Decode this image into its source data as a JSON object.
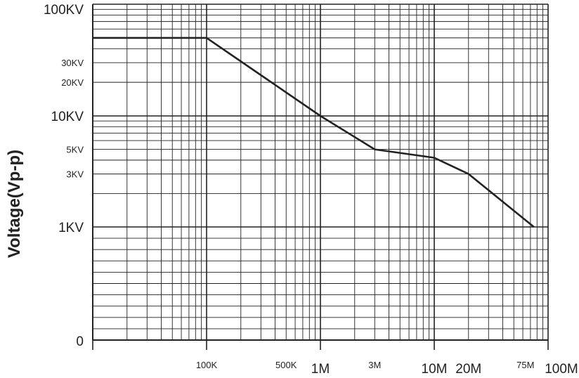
{
  "chart_data": {
    "type": "line",
    "title": "",
    "xlabel": "",
    "ylabel": "Voltage(Vp-p)",
    "grid": true,
    "legend": "none",
    "x_ticks": [
      {
        "label": "100K",
        "value": 100000,
        "size": "small"
      },
      {
        "label": "500K",
        "value": 500000,
        "size": "small"
      },
      {
        "label": "1M",
        "value": 1000000,
        "size": "large"
      },
      {
        "label": "3M",
        "value": 3000000,
        "size": "small"
      },
      {
        "label": "10M",
        "value": 10000000,
        "size": "large"
      },
      {
        "label": "20M",
        "value": 20000000,
        "size": "large"
      },
      {
        "label": "75M",
        "value": 75000000,
        "size": "small"
      },
      {
        "label": "100M",
        "value": 100000000,
        "size": "large"
      }
    ],
    "y_ticks": [
      {
        "label": "100KV",
        "value": 100000,
        "size": "large"
      },
      {
        "label": "30KV",
        "value": 30000,
        "size": "small"
      },
      {
        "label": "20KV",
        "value": 20000,
        "size": "small"
      },
      {
        "label": "10KV",
        "value": 10000,
        "size": "large"
      },
      {
        "label": "5KV",
        "value": 5000,
        "size": "small"
      },
      {
        "label": "3KV",
        "value": 3000,
        "size": "small"
      },
      {
        "label": "1KV",
        "value": 1000,
        "size": "large"
      },
      {
        "label": "0",
        "value": 0,
        "size": "large"
      }
    ],
    "series": [
      {
        "color": "#222222",
        "points": [
          {
            "x": 10000,
            "y": 50000
          },
          {
            "x": 100000,
            "y": 50000
          },
          {
            "x": 1000000,
            "y": 10000
          },
          {
            "x": 3000000,
            "y": 5000
          },
          {
            "x": 10000000,
            "y": 4200
          },
          {
            "x": 20000000,
            "y": 3000
          },
          {
            "x": 75000000,
            "y": 1000
          }
        ]
      }
    ]
  }
}
